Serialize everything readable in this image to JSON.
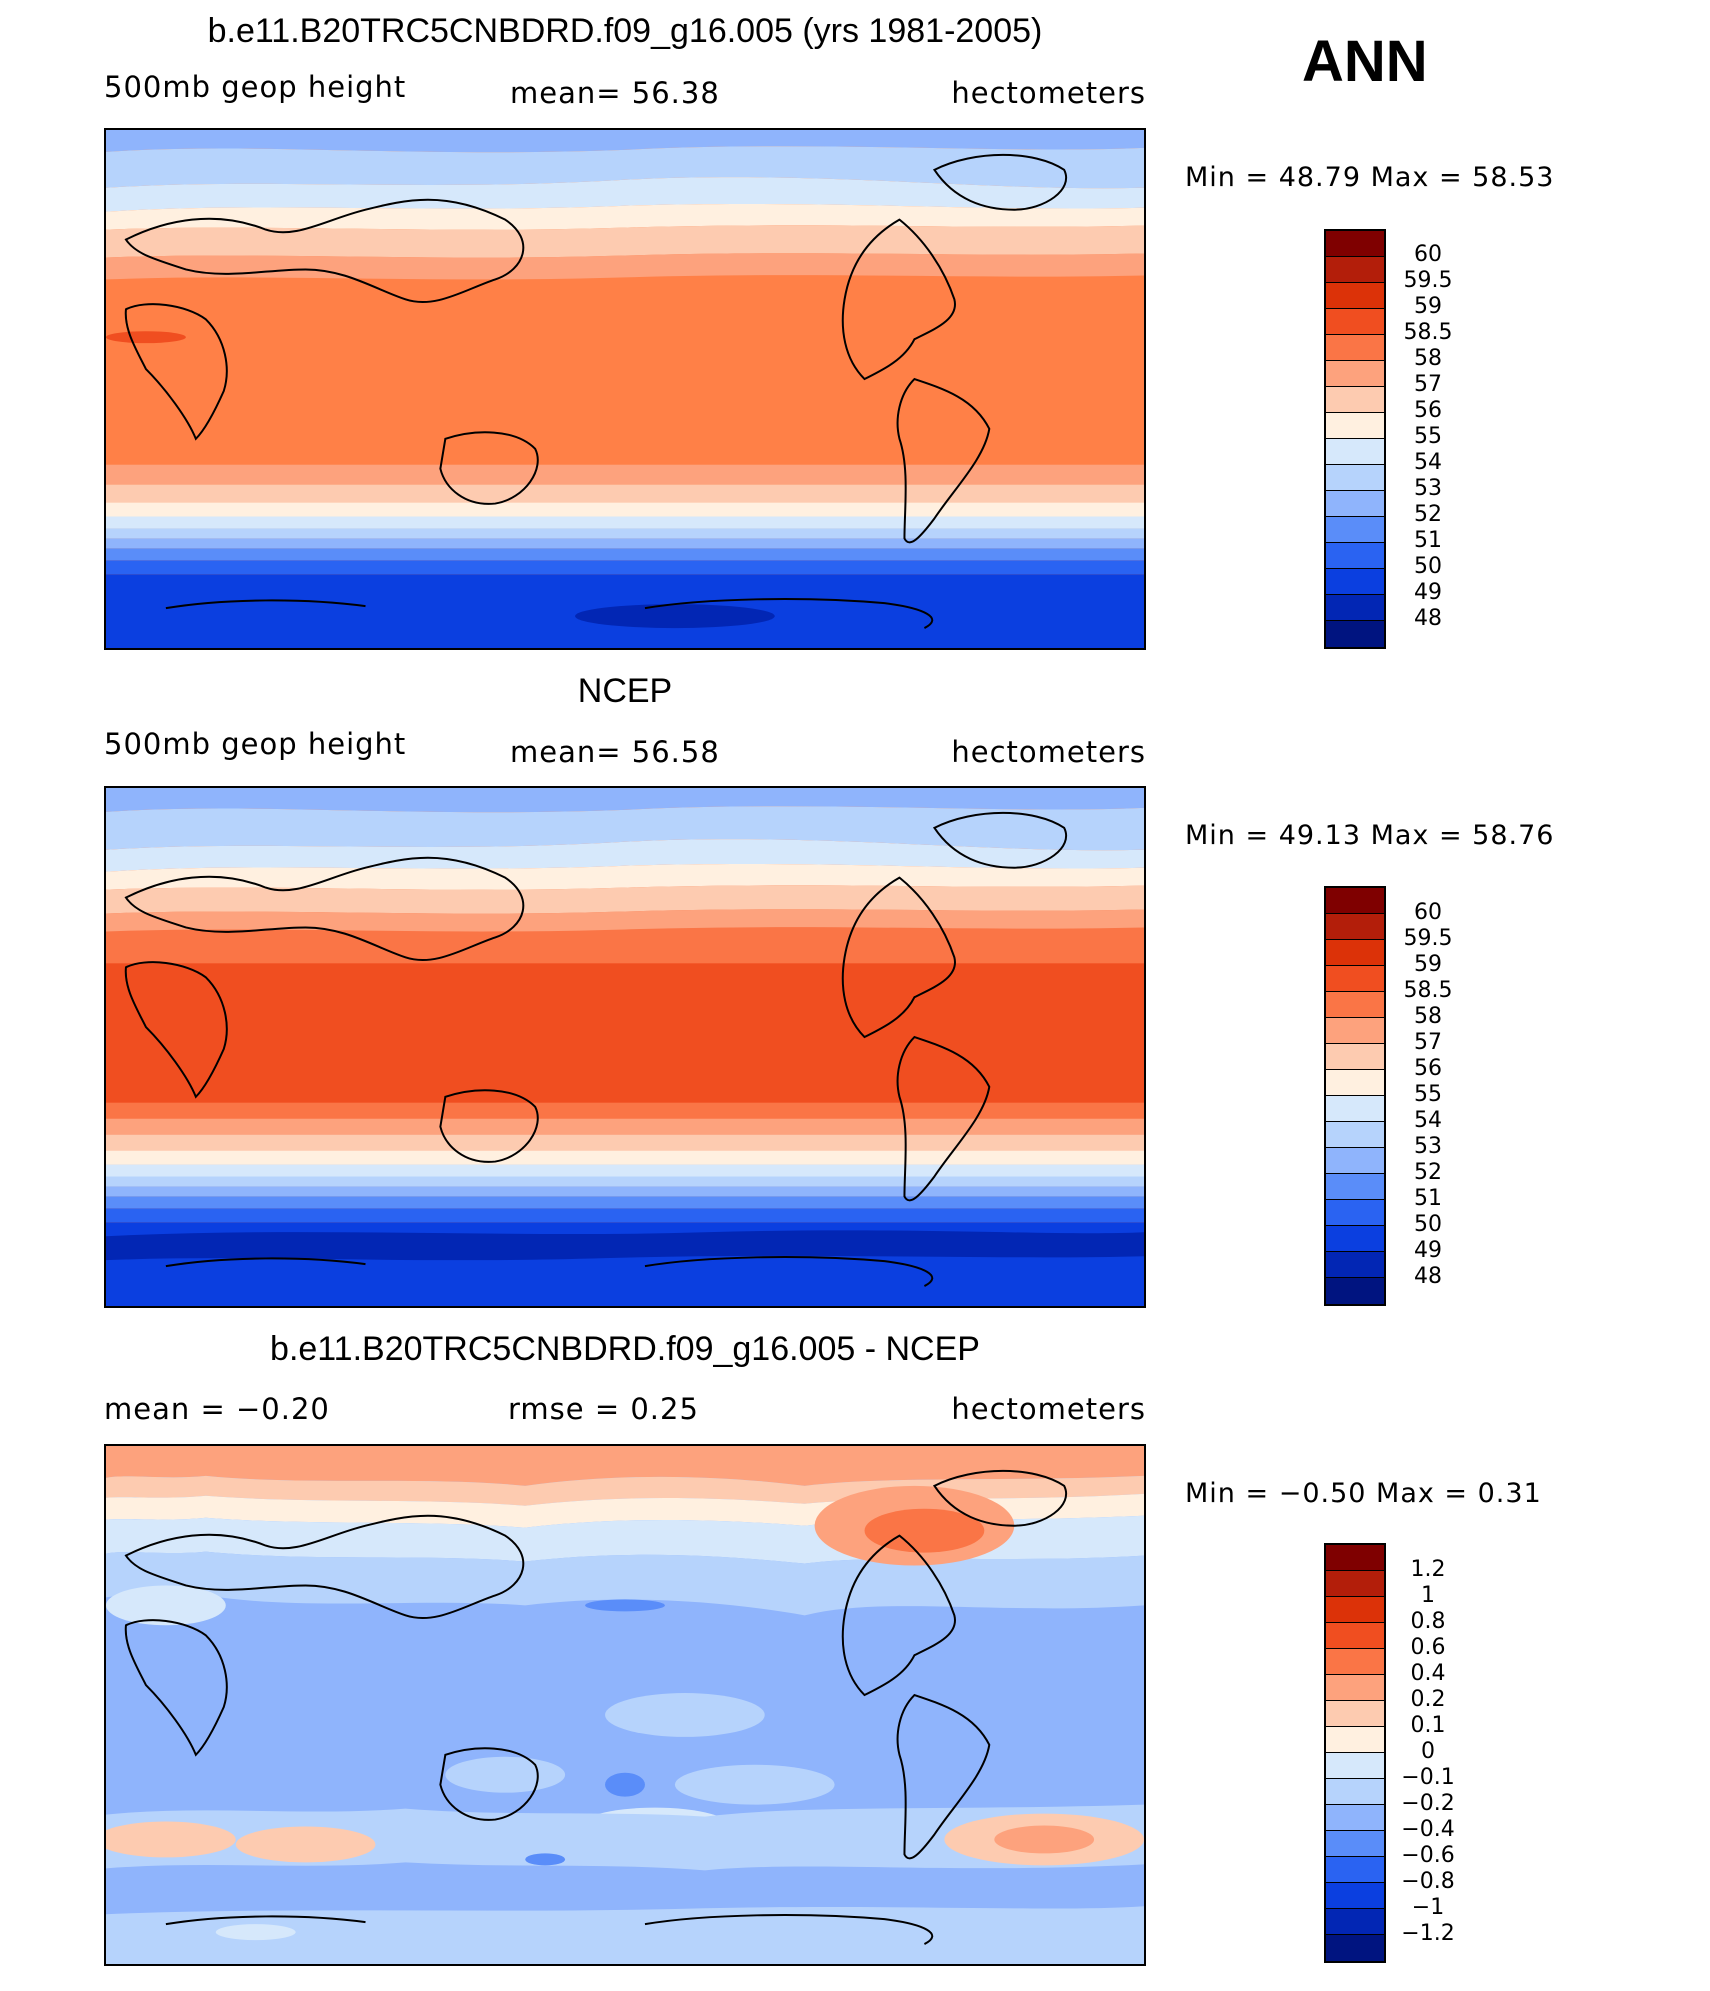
{
  "header": {
    "season": "ANN"
  },
  "panels": [
    {
      "title": "b.e11.B20TRC5CNBDRD.f09_g16.005 (yrs 1981-2005)",
      "variable": "500mb geop height",
      "stat": "mean=   56.38",
      "units": "hectometers",
      "minmax": "Min =   48.79  Max =    58.53",
      "colorbar": {
        "labels": [
          "60",
          "59.5",
          "59",
          "58.5",
          "58",
          "57",
          "56",
          "55",
          "54",
          "53",
          "52",
          "51",
          "50",
          "49",
          "48"
        ],
        "colors": [
          "#7f0000",
          "#b31e0a",
          "#dc3208",
          "#f04e20",
          "#fa7546",
          "#fda27d",
          "#fdcbb0",
          "#fff0e0",
          "#d6e8fb",
          "#b6d3fc",
          "#8fb4fc",
          "#5a8df9",
          "#2a63f2",
          "#0b3fe0",
          "#0226b4",
          "#001480"
        ]
      }
    },
    {
      "title": "NCEP",
      "variable": "500mb geop height",
      "stat": "mean=   56.58",
      "units": "hectometers",
      "minmax": "Min =   49.13  Max =    58.76",
      "colorbar": {
        "labels": [
          "60",
          "59.5",
          "59",
          "58.5",
          "58",
          "57",
          "56",
          "55",
          "54",
          "53",
          "52",
          "51",
          "50",
          "49",
          "48"
        ],
        "colors": [
          "#7f0000",
          "#b31e0a",
          "#dc3208",
          "#f04e20",
          "#fa7546",
          "#fda27d",
          "#fdcbb0",
          "#fff0e0",
          "#d6e8fb",
          "#b6d3fc",
          "#8fb4fc",
          "#5a8df9",
          "#2a63f2",
          "#0b3fe0",
          "#0226b4",
          "#001480"
        ]
      }
    },
    {
      "title": "b.e11.B20TRC5CNBDRD.f09_g16.005 - NCEP",
      "variable": "mean =    −0.20",
      "stat": "rmse =     0.25",
      "units": "hectometers",
      "minmax": "Min =   −0.50  Max =     0.31",
      "colorbar": {
        "labels": [
          "1.2",
          "1",
          "0.8",
          "0.6",
          "0.4",
          "0.2",
          "0.1",
          "0",
          "−0.1",
          "−0.2",
          "−0.4",
          "−0.6",
          "−0.8",
          "−1",
          "−1.2"
        ],
        "colors": [
          "#7f0000",
          "#b31e0a",
          "#dc3208",
          "#f04e20",
          "#fa7546",
          "#fda27d",
          "#fdcbb0",
          "#fff0e0",
          "#d6e8fb",
          "#b6d3fc",
          "#8fb4fc",
          "#5a8df9",
          "#2a63f2",
          "#0b3fe0",
          "#0226b4",
          "#001480"
        ]
      }
    }
  ]
}
